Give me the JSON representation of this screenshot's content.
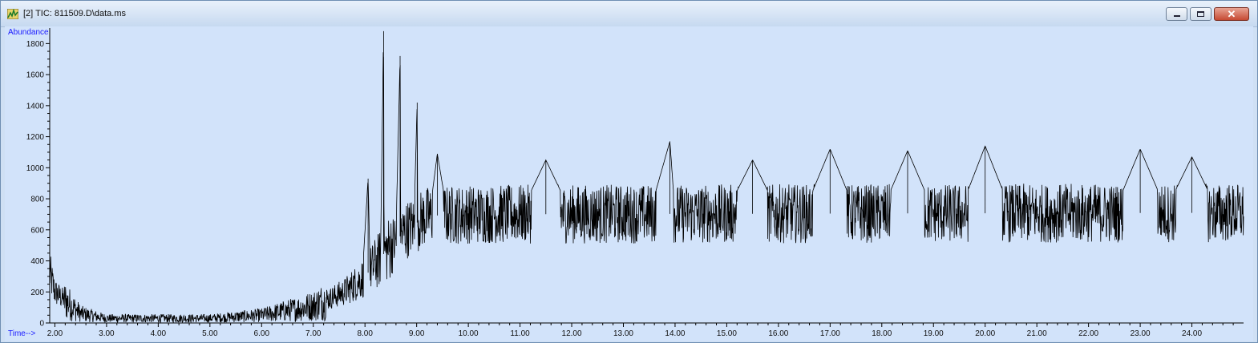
{
  "window": {
    "title": "[2] TIC: 811509.D\\data.ms",
    "icon": "chromatogram-app-icon",
    "close_glyph": "✕"
  },
  "colors": {
    "plot_background": "#d2e3fa",
    "trace": "#000000",
    "axis_name": "#1a1aff"
  },
  "chart_data": {
    "type": "line",
    "title": "",
    "ylabel": "Abundance",
    "xlabel": "Time-->",
    "xlim": [
      1.9,
      25.0
    ],
    "ylim": [
      0,
      1900
    ],
    "xticks": [
      "2.00",
      "3.00",
      "4.00",
      "5.00",
      "6.00",
      "7.00",
      "8.00",
      "9.00",
      "10.00",
      "11.00",
      "12.00",
      "13.00",
      "14.00",
      "15.00",
      "16.00",
      "17.00",
      "18.00",
      "19.00",
      "20.00",
      "21.00",
      "22.00",
      "23.00",
      "24.00"
    ],
    "yticks": [
      "0",
      "200",
      "400",
      "600",
      "800",
      "1000",
      "1200",
      "1400",
      "1600",
      "1800"
    ],
    "grid": false,
    "series": [
      {
        "x": [
          1.9,
          2.0,
          2.2,
          2.5,
          3.0,
          3.5,
          4.0,
          4.5,
          5.0,
          5.5,
          6.0,
          6.5,
          7.0,
          7.3,
          7.6,
          7.8,
          7.95,
          8.06,
          8.1,
          8.2,
          8.3,
          8.36,
          8.37,
          8.4,
          8.5,
          8.6,
          8.68,
          8.69,
          8.75,
          8.85,
          8.95,
          9.01,
          9.02,
          9.1,
          9.25,
          9.4,
          9.6,
          9.8,
          10.0,
          10.5,
          11.0,
          11.5,
          12.0,
          12.5,
          13.0,
          13.5,
          13.9,
          14.0,
          14.5,
          15.0,
          15.5,
          16.0,
          16.5,
          17.0,
          17.5,
          18.0,
          18.5,
          19.0,
          19.5,
          20.0,
          20.5,
          21.0,
          21.5,
          22.0,
          22.5,
          23.0,
          23.5,
          24.0,
          24.5,
          25.0
        ],
        "y": [
          320,
          200,
          120,
          60,
          30,
          25,
          25,
          25,
          30,
          40,
          50,
          70,
          110,
          150,
          200,
          260,
          310,
          930,
          340,
          380,
          420,
          1880,
          480,
          500,
          540,
          580,
          1720,
          610,
          630,
          650,
          670,
          1420,
          680,
          690,
          700,
          1090,
          690,
          700,
          700,
          690,
          700,
          1050,
          700,
          710,
          710,
          700,
          1170,
          700,
          710,
          720,
          1050,
          710,
          720,
          1120,
          710,
          720,
          1110,
          720,
          710,
          1140,
          720,
          710,
          720,
          730,
          720,
          1120,
          730,
          1070,
          720,
          710
        ]
      }
    ]
  }
}
